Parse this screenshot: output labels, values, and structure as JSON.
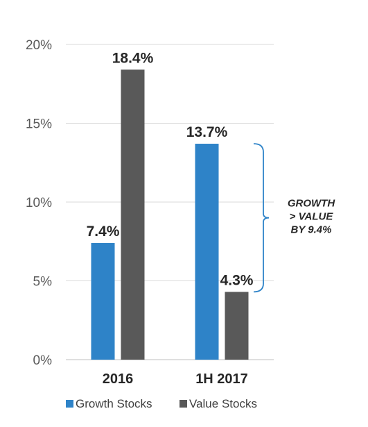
{
  "chart_data": {
    "type": "bar",
    "categories": [
      "2016",
      "1H 2017"
    ],
    "series": [
      {
        "name": "Growth Stocks",
        "color": "#2E83C8",
        "values": [
          7.4,
          13.7
        ],
        "labels": [
          "7.4%",
          "13.7%"
        ]
      },
      {
        "name": "Value Stocks",
        "color": "#595959",
        "values": [
          18.4,
          4.3
        ],
        "labels": [
          "18.4%",
          "4.3%"
        ]
      }
    ],
    "ylim": [
      0,
      20
    ],
    "yticks": [
      0,
      5,
      10,
      15,
      20
    ],
    "ytick_labels": [
      "0%",
      "5%",
      "10%",
      "15%",
      "20%"
    ],
    "grid": true,
    "legend_position": "bottom",
    "annotation": {
      "lines": [
        "GROWTH",
        "> VALUE",
        "BY 9.4%"
      ],
      "from_value": 13.7,
      "to_value": 4.3,
      "color": "#2E83C8"
    }
  }
}
